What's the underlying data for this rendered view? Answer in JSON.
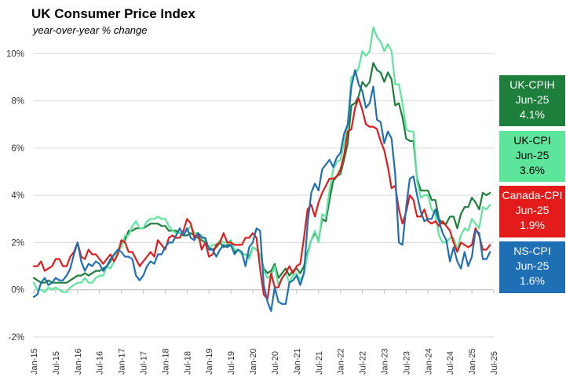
{
  "chart_data": {
    "type": "line",
    "title": "UK Consumer Price Index",
    "subtitle": "year-over-year % change",
    "ylim": [
      -2,
      12
    ],
    "y_ticks": [
      "-2%",
      "0%",
      "2%",
      "4%",
      "6%",
      "8%",
      "10%"
    ],
    "y_tick_values": [
      -2,
      0,
      2,
      4,
      6,
      8,
      10
    ],
    "x_start": "Jan-15",
    "x_end": "Jul-25",
    "x_ticks": [
      "Jan-15",
      "Jul-15",
      "Jan-16",
      "Jul-16",
      "Jan-17",
      "Jul-17",
      "Jan-18",
      "Jul-18",
      "Jan-19",
      "Jul-19",
      "Jan-20",
      "Jul-20",
      "Jan-21",
      "Jul-21",
      "Jan-22",
      "Jul-22",
      "Jan-23",
      "Jul-23",
      "Jan-24",
      "Jul-24",
      "Jan-25",
      "Jul-25"
    ],
    "series": [
      {
        "name": "UK-CPIH",
        "color": "#1e7f3c",
        "latest_label": "Jun-25",
        "latest_value": "4.1%",
        "values": [
          0.5,
          0.4,
          0.3,
          0.3,
          0.4,
          0.3,
          0.3,
          0.3,
          0.3,
          0.3,
          0.4,
          0.5,
          0.6,
          0.6,
          0.7,
          0.6,
          0.7,
          0.8,
          0.8,
          0.9,
          1.0,
          1.2,
          1.5,
          1.6,
          2.0,
          2.1,
          2.5,
          2.5,
          2.6,
          2.6,
          2.6,
          2.7,
          2.8,
          2.8,
          2.8,
          2.7,
          2.7,
          2.5,
          2.5,
          2.5,
          2.4,
          2.3,
          2.3,
          2.4,
          2.3,
          2.2,
          2.1,
          2.0,
          1.8,
          1.7,
          1.8,
          2.0,
          1.8,
          1.9,
          1.9,
          1.6,
          1.7,
          1.5,
          1.5,
          1.4,
          1.8,
          1.7,
          1.5,
          0.9,
          0.7,
          0.8,
          1.1,
          0.5,
          0.7,
          0.9,
          0.6,
          0.8,
          0.9,
          0.7,
          1.0,
          1.6,
          2.1,
          2.4,
          2.1,
          3.0,
          2.9,
          3.8,
          4.6,
          4.8,
          4.9,
          5.5,
          6.2,
          7.8,
          7.9,
          8.2,
          8.8,
          8.6,
          8.8,
          9.6,
          9.3,
          9.2,
          8.8,
          9.2,
          8.9,
          7.8,
          7.9,
          7.3,
          6.4,
          6.3,
          6.3,
          4.7,
          4.2,
          4.2,
          4.2,
          3.8,
          3.8,
          3.0,
          2.8,
          2.8,
          3.1,
          3.1,
          2.6,
          3.2,
          3.5,
          3.5,
          3.9,
          3.7,
          3.4,
          4.1,
          4.0,
          4.1
        ]
      },
      {
        "name": "UK-CPI",
        "color": "#5ee59c",
        "latest_label": "Jun-25",
        "latest_value": "3.6%",
        "values": [
          0.3,
          0.0,
          0.0,
          -0.1,
          0.1,
          0.0,
          0.1,
          0.0,
          -0.1,
          -0.1,
          0.1,
          0.2,
          0.3,
          0.3,
          0.5,
          0.3,
          0.3,
          0.5,
          0.6,
          0.6,
          1.0,
          0.9,
          1.2,
          1.6,
          1.8,
          2.3,
          2.3,
          2.7,
          2.9,
          2.6,
          2.6,
          2.9,
          3.0,
          3.0,
          3.1,
          3.0,
          3.0,
          2.7,
          2.5,
          2.4,
          2.4,
          2.4,
          2.5,
          2.7,
          2.4,
          2.4,
          2.3,
          2.1,
          1.8,
          1.9,
          1.9,
          2.1,
          2.0,
          2.0,
          2.1,
          1.7,
          1.7,
          1.5,
          1.5,
          1.3,
          1.8,
          1.7,
          1.5,
          0.8,
          0.5,
          0.6,
          1.0,
          0.2,
          0.5,
          0.7,
          0.3,
          0.6,
          0.7,
          0.4,
          0.7,
          1.5,
          2.1,
          2.5,
          2.0,
          3.2,
          3.1,
          4.2,
          5.1,
          5.4,
          5.5,
          6.2,
          7.0,
          9.0,
          9.1,
          9.4,
          10.1,
          9.9,
          10.1,
          11.1,
          10.7,
          10.5,
          10.1,
          10.4,
          10.1,
          8.7,
          8.7,
          7.9,
          6.8,
          6.7,
          6.7,
          4.6,
          3.9,
          4.0,
          4.0,
          3.4,
          3.2,
          2.3,
          2.0,
          2.0,
          2.2,
          2.2,
          1.7,
          2.3,
          2.6,
          2.5,
          3.0,
          2.8,
          2.6,
          3.5,
          3.4,
          3.6
        ]
      },
      {
        "name": "Canada-CPI",
        "color": "#e31b1b",
        "latest_label": "Jun-25",
        "latest_value": "1.9%",
        "values": [
          1.0,
          1.0,
          1.2,
          0.8,
          0.9,
          1.0,
          1.3,
          1.3,
          1.0,
          1.0,
          1.4,
          1.6,
          2.0,
          1.4,
          1.3,
          1.7,
          1.5,
          1.5,
          1.3,
          1.1,
          1.3,
          1.5,
          1.2,
          1.5,
          2.1,
          2.0,
          1.6,
          1.6,
          1.3,
          1.0,
          1.2,
          1.4,
          1.6,
          1.4,
          2.1,
          1.9,
          1.7,
          2.2,
          2.3,
          2.2,
          2.2,
          2.5,
          3.0,
          2.8,
          2.2,
          2.4,
          1.7,
          2.0,
          1.4,
          1.5,
          1.9,
          2.0,
          2.4,
          2.0,
          2.0,
          1.9,
          1.9,
          1.9,
          2.2,
          2.2,
          2.4,
          2.2,
          0.9,
          -0.2,
          -0.4,
          0.7,
          0.1,
          0.1,
          0.5,
          0.7,
          1.0,
          0.7,
          1.0,
          1.1,
          2.2,
          3.4,
          3.6,
          3.1,
          3.7,
          4.1,
          4.4,
          4.7,
          4.7,
          4.8,
          5.1,
          5.7,
          6.7,
          6.8,
          7.7,
          8.1,
          7.6,
          7.0,
          6.9,
          6.9,
          6.8,
          6.3,
          5.9,
          5.2,
          4.3,
          4.4,
          3.4,
          2.8,
          3.3,
          4.0,
          3.8,
          3.1,
          3.1,
          3.4,
          2.9,
          2.8,
          2.9,
          2.7,
          2.9,
          2.7,
          2.5,
          2.0,
          1.6,
          2.0,
          1.9,
          1.8,
          1.9,
          2.6,
          2.3,
          1.7,
          1.7,
          1.9
        ]
      },
      {
        "name": "NS-CPI",
        "color": "#1f6fb5",
        "latest_label": "Jun-25",
        "latest_value": "1.6%",
        "values": [
          -0.3,
          -0.2,
          0.3,
          0.5,
          0.2,
          0.3,
          0.5,
          0.4,
          0.4,
          0.6,
          0.9,
          1.5,
          2.0,
          1.2,
          0.8,
          1.1,
          1.0,
          1.2,
          1.1,
          0.8,
          1.0,
          1.3,
          1.5,
          1.7,
          1.6,
          1.4,
          1.4,
          1.3,
          0.6,
          0.4,
          0.6,
          1.0,
          1.2,
          1.1,
          1.5,
          1.5,
          1.8,
          2.0,
          2.0,
          2.3,
          2.6,
          2.3,
          2.6,
          2.2,
          2.1,
          2.4,
          2.2,
          2.2,
          1.7,
          1.7,
          1.4,
          1.7,
          1.9,
          1.8,
          1.9,
          1.5,
          1.7,
          1.6,
          1.0,
          1.8,
          2.0,
          2.6,
          2.5,
          0.2,
          -0.5,
          -0.9,
          0.1,
          -0.5,
          -0.6,
          -0.6,
          0.3,
          0.4,
          0.6,
          0.2,
          0.7,
          2.8,
          4.1,
          4.5,
          4.2,
          5.1,
          5.3,
          5.5,
          5.2,
          5.6,
          5.8,
          6.6,
          7.0,
          8.6,
          9.3,
          8.7,
          8.4,
          7.7,
          7.9,
          8.6,
          7.2,
          7.1,
          6.2,
          6.7,
          6.4,
          4.9,
          2.0,
          1.9,
          3.5,
          4.7,
          4.8,
          4.0,
          3.3,
          2.9,
          3.0,
          3.0,
          3.4,
          2.9,
          2.4,
          2.1,
          1.2,
          1.8,
          1.2,
          0.9,
          1.6,
          1.0,
          1.4,
          2.5,
          2.4,
          1.3,
          1.3,
          1.6
        ]
      }
    ]
  }
}
